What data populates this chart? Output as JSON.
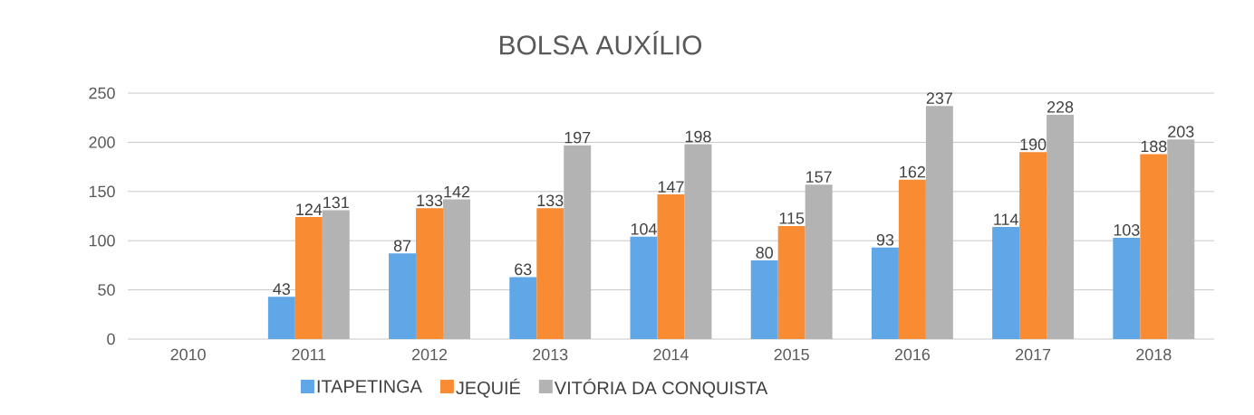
{
  "chart_data": {
    "type": "bar",
    "title": "BOLSA AUXÍLIO",
    "categories": [
      "2010",
      "2011",
      "2012",
      "2013",
      "2014",
      "2015",
      "2016",
      "2017",
      "2018"
    ],
    "series": [
      {
        "name": "ITAPETINGA",
        "color": "#5fa7e6",
        "values": [
          null,
          43,
          87,
          63,
          104,
          80,
          93,
          114,
          103
        ]
      },
      {
        "name": "JEQUIÉ",
        "color": "#f98b33",
        "values": [
          null,
          124,
          133,
          133,
          147,
          115,
          162,
          190,
          188
        ]
      },
      {
        "name": "VITÓRIA DA CONQUISTA",
        "color": "#b3b3b3",
        "values": [
          null,
          131,
          142,
          197,
          198,
          157,
          237,
          228,
          203
        ]
      }
    ],
    "ylim": [
      0,
      250
    ],
    "yticks": [
      0,
      50,
      100,
      150,
      200,
      250
    ],
    "grid": "y",
    "legend": "bottom",
    "data_labels": true
  }
}
